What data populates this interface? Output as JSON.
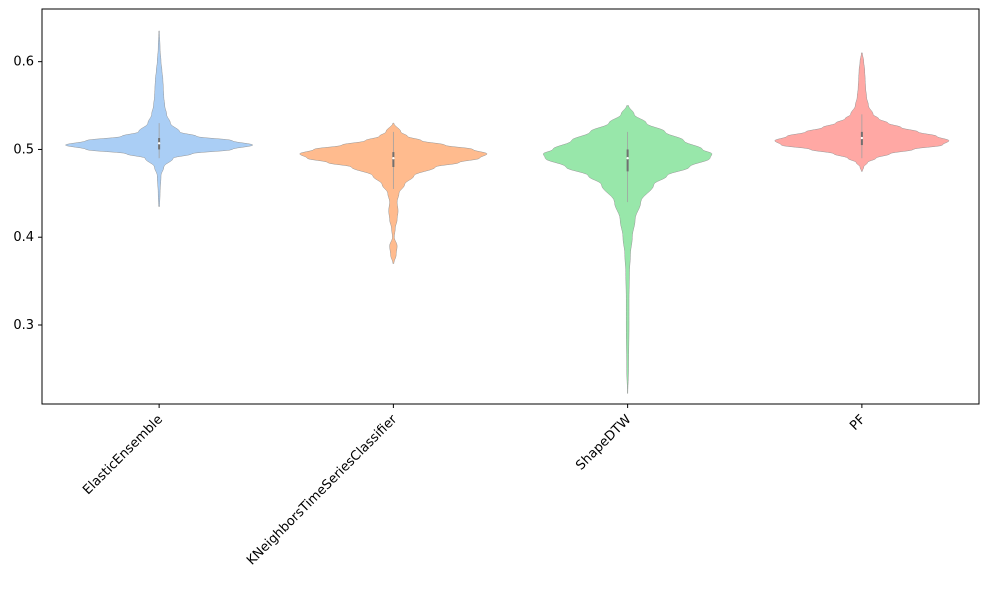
{
  "chart_data": {
    "type": "violin",
    "title": "",
    "xlabel": "",
    "ylabel": "",
    "ylim": [
      0.21,
      0.66
    ],
    "yticks": [
      0.3,
      0.4,
      0.5,
      0.6
    ],
    "ytick_labels": [
      "0.3",
      "0.4",
      "0.5",
      "0.6"
    ],
    "grid": false,
    "categories": [
      "ElasticEnsemble",
      "KNeighborsTimeSeriesClassifier",
      "ShapeDTW",
      "PF"
    ],
    "colors": [
      "#a1c9f4",
      "#ffb482",
      "#8de5a1",
      "#ff9f9b"
    ],
    "distributions": [
      {
        "name": "ElasticEnsemble",
        "y_range": [
          0.435,
          0.635
        ],
        "median": 0.507,
        "q1": 0.5,
        "q3": 0.513,
        "whisker_low": 0.49,
        "whisker_high": 0.53,
        "profile": [
          [
            0.435,
            0.005
          ],
          [
            0.45,
            0.01
          ],
          [
            0.47,
            0.02
          ],
          [
            0.48,
            0.05
          ],
          [
            0.49,
            0.15
          ],
          [
            0.495,
            0.35
          ],
          [
            0.5,
            0.78
          ],
          [
            0.505,
            1.0
          ],
          [
            0.51,
            0.78
          ],
          [
            0.515,
            0.4
          ],
          [
            0.52,
            0.22
          ],
          [
            0.53,
            0.12
          ],
          [
            0.54,
            0.08
          ],
          [
            0.55,
            0.06
          ],
          [
            0.56,
            0.05
          ],
          [
            0.57,
            0.045
          ],
          [
            0.58,
            0.04
          ],
          [
            0.59,
            0.03
          ],
          [
            0.6,
            0.02
          ],
          [
            0.615,
            0.01
          ],
          [
            0.635,
            0.003
          ]
        ]
      },
      {
        "name": "KNeighborsTimeSeriesClassifier",
        "y_range": [
          0.37,
          0.53
        ],
        "median": 0.49,
        "q1": 0.48,
        "q3": 0.497,
        "whisker_low": 0.455,
        "whisker_high": 0.52,
        "profile": [
          [
            0.37,
            0.005
          ],
          [
            0.38,
            0.03
          ],
          [
            0.39,
            0.04
          ],
          [
            0.4,
            0.01
          ],
          [
            0.41,
            0.02
          ],
          [
            0.42,
            0.04
          ],
          [
            0.43,
            0.05
          ],
          [
            0.44,
            0.04
          ],
          [
            0.45,
            0.06
          ],
          [
            0.46,
            0.12
          ],
          [
            0.47,
            0.22
          ],
          [
            0.48,
            0.45
          ],
          [
            0.485,
            0.7
          ],
          [
            0.49,
            0.92
          ],
          [
            0.495,
            1.0
          ],
          [
            0.5,
            0.85
          ],
          [
            0.505,
            0.55
          ],
          [
            0.51,
            0.3
          ],
          [
            0.515,
            0.15
          ],
          [
            0.52,
            0.08
          ],
          [
            0.53,
            0.005
          ]
        ]
      },
      {
        "name": "ShapeDTW",
        "y_range": [
          0.222,
          0.55
        ],
        "median": 0.49,
        "q1": 0.475,
        "q3": 0.5,
        "whisker_low": 0.44,
        "whisker_high": 0.52,
        "profile": [
          [
            0.222,
            0.002
          ],
          [
            0.25,
            0.01
          ],
          [
            0.3,
            0.015
          ],
          [
            0.33,
            0.015
          ],
          [
            0.36,
            0.02
          ],
          [
            0.38,
            0.03
          ],
          [
            0.4,
            0.05
          ],
          [
            0.42,
            0.08
          ],
          [
            0.44,
            0.14
          ],
          [
            0.46,
            0.28
          ],
          [
            0.47,
            0.42
          ],
          [
            0.48,
            0.66
          ],
          [
            0.49,
            0.88
          ],
          [
            0.495,
            0.9
          ],
          [
            0.5,
            0.8
          ],
          [
            0.51,
            0.6
          ],
          [
            0.52,
            0.4
          ],
          [
            0.53,
            0.2
          ],
          [
            0.54,
            0.07
          ],
          [
            0.55,
            0.01
          ]
        ]
      },
      {
        "name": "PF",
        "y_range": [
          0.475,
          0.61
        ],
        "median": 0.513,
        "q1": 0.505,
        "q3": 0.52,
        "whisker_low": 0.49,
        "whisker_high": 0.54,
        "profile": [
          [
            0.475,
            0.005
          ],
          [
            0.48,
            0.02
          ],
          [
            0.485,
            0.06
          ],
          [
            0.49,
            0.15
          ],
          [
            0.495,
            0.3
          ],
          [
            0.5,
            0.55
          ],
          [
            0.505,
            0.86
          ],
          [
            0.51,
            0.93
          ],
          [
            0.515,
            0.8
          ],
          [
            0.52,
            0.6
          ],
          [
            0.525,
            0.42
          ],
          [
            0.53,
            0.28
          ],
          [
            0.535,
            0.18
          ],
          [
            0.54,
            0.12
          ],
          [
            0.55,
            0.07
          ],
          [
            0.56,
            0.05
          ],
          [
            0.57,
            0.04
          ],
          [
            0.58,
            0.035
          ],
          [
            0.59,
            0.03
          ],
          [
            0.6,
            0.02
          ],
          [
            0.61,
            0.005
          ]
        ]
      }
    ]
  }
}
